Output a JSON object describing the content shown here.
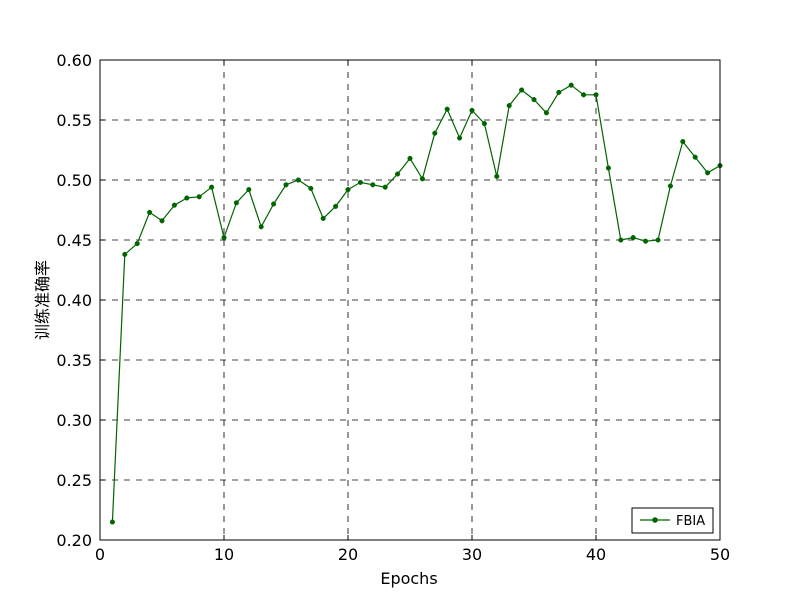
{
  "chart_data": {
    "type": "line",
    "xlabel": "Epochs",
    "ylabel": "训练准确率",
    "xlim": [
      0,
      50
    ],
    "ylim": [
      0.2,
      0.6
    ],
    "xticks": [
      0,
      10,
      20,
      30,
      40,
      50
    ],
    "xtick_labels": [
      "0",
      "10",
      "20",
      "30",
      "40",
      "50"
    ],
    "yticks": [
      0.2,
      0.25,
      0.3,
      0.35,
      0.4,
      0.45,
      0.5,
      0.55,
      0.6
    ],
    "ytick_labels": [
      "0.20",
      "0.25",
      "0.30",
      "0.35",
      "0.40",
      "0.45",
      "0.50",
      "0.55",
      "0.60"
    ],
    "grid": true,
    "legend_position": "lower-right",
    "series": [
      {
        "name": "FBIA",
        "color": "#006400",
        "marker": "circle",
        "x": [
          1,
          2,
          3,
          4,
          5,
          6,
          7,
          8,
          9,
          10,
          11,
          12,
          13,
          14,
          15,
          16,
          17,
          18,
          19,
          20,
          21,
          22,
          23,
          24,
          25,
          26,
          27,
          28,
          29,
          30,
          31,
          32,
          33,
          34,
          35,
          36,
          37,
          38,
          39,
          40,
          41,
          42,
          43,
          44,
          45,
          46,
          47,
          48,
          49,
          50
        ],
        "y": [
          0.215,
          0.438,
          0.447,
          0.473,
          0.466,
          0.479,
          0.485,
          0.486,
          0.494,
          0.452,
          0.481,
          0.492,
          0.461,
          0.48,
          0.496,
          0.5,
          0.493,
          0.468,
          0.478,
          0.492,
          0.498,
          0.496,
          0.494,
          0.505,
          0.518,
          0.501,
          0.539,
          0.559,
          0.535,
          0.558,
          0.547,
          0.503,
          0.562,
          0.575,
          0.567,
          0.556,
          0.573,
          0.579,
          0.571,
          0.571,
          0.51,
          0.45,
          0.452,
          0.449,
          0.45,
          0.495,
          0.532,
          0.519,
          0.506,
          0.512
        ]
      }
    ]
  }
}
